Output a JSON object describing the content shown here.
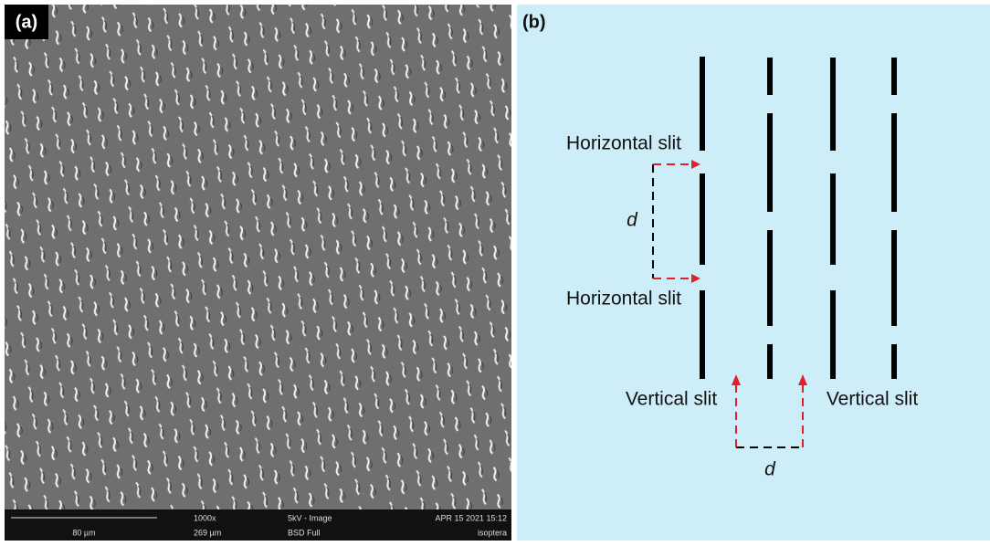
{
  "panel_a": {
    "label": "(a)",
    "info_bar": {
      "scale": "80 µm",
      "magnification": "1000x",
      "field_width": "269 µm",
      "voltage": "5kV - Image",
      "detector": "BSD Full",
      "timestamp": "APR 15 2021 15:12",
      "sample": "isoptera"
    }
  },
  "panel_b": {
    "label": "(b)",
    "horizontal_slit_top": "Horizontal slit",
    "horizontal_slit_bottom": "Horizontal slit",
    "vertical_slit_left": "Vertical slit",
    "vertical_slit_right": "Vertical slit",
    "distance_horizontal": "d",
    "distance_vertical": "d"
  }
}
